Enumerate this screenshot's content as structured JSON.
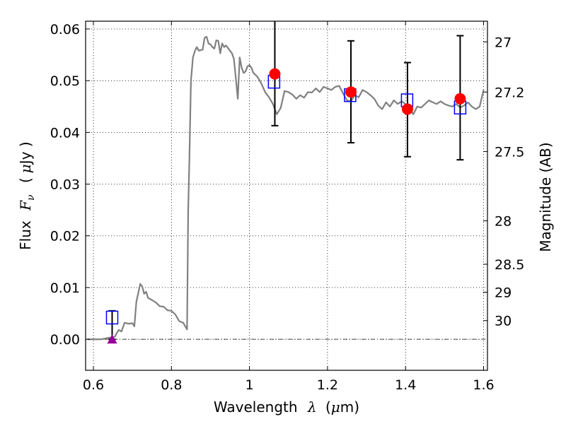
{
  "chart_data": {
    "type": "scatter",
    "xlabel": "Wavelength  λ (μm)",
    "ylabel": "Flux  F_ν  ( μJy )",
    "ylabel_parts": {
      "prefix": "Flux",
      "symbol": "F",
      "subscript": "ν",
      "unit_open": "(",
      "unit_mu": "μ",
      "unit_rest": "Jy )"
    },
    "xlabel_parts": {
      "prefix": "Wavelength",
      "symbol": "λ",
      "unit_open": "(",
      "unit_mu": "μ",
      "unit_rest": "m)"
    },
    "y2label": "Magnitude (AB)",
    "xlim": [
      0.58,
      1.61
    ],
    "ylim": [
      -0.006,
      0.0615
    ],
    "grid": true,
    "x_ticks": [
      {
        "value": 0.6,
        "label": "0.6"
      },
      {
        "value": 0.8,
        "label": "0.8"
      },
      {
        "value": 1.0,
        "label": "1"
      },
      {
        "value": 1.2,
        "label": "1.2"
      },
      {
        "value": 1.4,
        "label": "1.4"
      },
      {
        "value": 1.6,
        "label": "1.6"
      }
    ],
    "y_ticks": [
      {
        "value": 0.0,
        "label": "0.00"
      },
      {
        "value": 0.01,
        "label": "0.01"
      },
      {
        "value": 0.02,
        "label": "0.02"
      },
      {
        "value": 0.03,
        "label": "0.03"
      },
      {
        "value": 0.04,
        "label": "0.04"
      },
      {
        "value": 0.05,
        "label": "0.05"
      },
      {
        "value": 0.06,
        "label": "0.06"
      }
    ],
    "y2_ticks": [
      {
        "flux": 0.0575,
        "label": "27"
      },
      {
        "flux": 0.0478,
        "label": "27.2"
      },
      {
        "flux": 0.0363,
        "label": "27.5"
      },
      {
        "flux": 0.0229,
        "label": "28"
      },
      {
        "flux": 0.0145,
        "label": "28.5"
      },
      {
        "flux": 0.0091,
        "label": "29"
      },
      {
        "flux": 0.0036,
        "label": "30"
      }
    ],
    "model_spectrum": {
      "color": "#808080",
      "points": [
        [
          0.585,
          0.0
        ],
        [
          0.62,
          0.0
        ],
        [
          0.64,
          0.0003
        ],
        [
          0.655,
          0.0005
        ],
        [
          0.66,
          0.0012
        ],
        [
          0.665,
          0.0018
        ],
        [
          0.672,
          0.0015
        ],
        [
          0.68,
          0.0032
        ],
        [
          0.69,
          0.003
        ],
        [
          0.7,
          0.0031
        ],
        [
          0.705,
          0.0025
        ],
        [
          0.71,
          0.0072
        ],
        [
          0.72,
          0.0107
        ],
        [
          0.725,
          0.0102
        ],
        [
          0.73,
          0.0088
        ],
        [
          0.735,
          0.0092
        ],
        [
          0.74,
          0.008
        ],
        [
          0.75,
          0.0076
        ],
        [
          0.76,
          0.0071
        ],
        [
          0.77,
          0.0064
        ],
        [
          0.78,
          0.0063
        ],
        [
          0.79,
          0.0056
        ],
        [
          0.8,
          0.0055
        ],
        [
          0.81,
          0.0048
        ],
        [
          0.82,
          0.0035
        ],
        [
          0.83,
          0.0032
        ],
        [
          0.84,
          0.0019
        ],
        [
          0.843,
          0.025
        ],
        [
          0.846,
          0.035
        ],
        [
          0.85,
          0.05
        ],
        [
          0.855,
          0.0545
        ],
        [
          0.86,
          0.0557
        ],
        [
          0.865,
          0.0565
        ],
        [
          0.87,
          0.0558
        ],
        [
          0.88,
          0.056
        ],
        [
          0.885,
          0.0583
        ],
        [
          0.89,
          0.0585
        ],
        [
          0.895,
          0.0572
        ],
        [
          0.9,
          0.057
        ],
        [
          0.905,
          0.0565
        ],
        [
          0.91,
          0.0562
        ],
        [
          0.915,
          0.0578
        ],
        [
          0.92,
          0.0577
        ],
        [
          0.925,
          0.0553
        ],
        [
          0.93,
          0.0572
        ],
        [
          0.935,
          0.0565
        ],
        [
          0.94,
          0.0568
        ],
        [
          0.945,
          0.0563
        ],
        [
          0.95,
          0.0558
        ],
        [
          0.955,
          0.0553
        ],
        [
          0.96,
          0.0542
        ],
        [
          0.965,
          0.0505
        ],
        [
          0.97,
          0.0465
        ],
        [
          0.975,
          0.0545
        ],
        [
          0.98,
          0.0525
        ],
        [
          0.985,
          0.0515
        ],
        [
          0.99,
          0.0518
        ],
        [
          0.995,
          0.0528
        ],
        [
          1.0,
          0.053
        ],
        [
          1.005,
          0.0525
        ],
        [
          1.01,
          0.0515
        ],
        [
          1.02,
          0.0508
        ],
        [
          1.03,
          0.0495
        ],
        [
          1.04,
          0.0478
        ],
        [
          1.05,
          0.0468
        ],
        [
          1.06,
          0.0455
        ],
        [
          1.07,
          0.0435
        ],
        [
          1.08,
          0.0447
        ],
        [
          1.09,
          0.048
        ],
        [
          1.1,
          0.0478
        ],
        [
          1.11,
          0.0473
        ],
        [
          1.12,
          0.0465
        ],
        [
          1.13,
          0.0472
        ],
        [
          1.14,
          0.0467
        ],
        [
          1.15,
          0.0478
        ],
        [
          1.16,
          0.0477
        ],
        [
          1.17,
          0.0485
        ],
        [
          1.18,
          0.0478
        ],
        [
          1.19,
          0.0488
        ],
        [
          1.2,
          0.0485
        ],
        [
          1.21,
          0.0482
        ],
        [
          1.22,
          0.0488
        ],
        [
          1.23,
          0.049
        ],
        [
          1.24,
          0.0475
        ],
        [
          1.25,
          0.0462
        ],
        [
          1.26,
          0.046
        ],
        [
          1.27,
          0.0472
        ],
        [
          1.28,
          0.0468
        ],
        [
          1.29,
          0.0482
        ],
        [
          1.3,
          0.0478
        ],
        [
          1.31,
          0.0472
        ],
        [
          1.32,
          0.0465
        ],
        [
          1.33,
          0.0452
        ],
        [
          1.34,
          0.0445
        ],
        [
          1.35,
          0.0458
        ],
        [
          1.36,
          0.045
        ],
        [
          1.37,
          0.0462
        ],
        [
          1.38,
          0.0455
        ],
        [
          1.39,
          0.046
        ],
        [
          1.4,
          0.0455
        ],
        [
          1.41,
          0.0448
        ],
        [
          1.42,
          0.0435
        ],
        [
          1.43,
          0.045
        ],
        [
          1.44,
          0.0448
        ],
        [
          1.45,
          0.0455
        ],
        [
          1.46,
          0.0462
        ],
        [
          1.47,
          0.0458
        ],
        [
          1.48,
          0.0455
        ],
        [
          1.49,
          0.046
        ],
        [
          1.5,
          0.0455
        ],
        [
          1.51,
          0.0452
        ],
        [
          1.52,
          0.045
        ],
        [
          1.53,
          0.0455
        ],
        [
          1.54,
          0.0448
        ],
        [
          1.55,
          0.0452
        ],
        [
          1.56,
          0.0458
        ],
        [
          1.57,
          0.045
        ],
        [
          1.58,
          0.0445
        ],
        [
          1.59,
          0.045
        ],
        [
          1.6,
          0.0482
        ]
      ]
    },
    "observed": {
      "color": "#ff0000",
      "points": [
        {
          "x": 1.065,
          "y": 0.0513,
          "err_low": 0.0413,
          "err_high": 0.0617
        },
        {
          "x": 1.26,
          "y": 0.0478,
          "err_low": 0.038,
          "err_high": 0.0577
        },
        {
          "x": 1.405,
          "y": 0.0445,
          "err_low": 0.0353,
          "err_high": 0.0535
        },
        {
          "x": 1.54,
          "y": 0.0465,
          "err_low": 0.0347,
          "err_high": 0.0587
        }
      ]
    },
    "model_photometry": {
      "color": "#0000ff",
      "points": [
        {
          "x": 0.648,
          "y": 0.0042
        },
        {
          "x": 1.063,
          "y": 0.0498
        },
        {
          "x": 1.258,
          "y": 0.0472
        },
        {
          "x": 1.404,
          "y": 0.0462
        },
        {
          "x": 1.54,
          "y": 0.0448
        }
      ]
    },
    "upper_limit": {
      "color": "#990099",
      "x": 0.648,
      "y": 0.0,
      "err_high": 0.0055
    }
  }
}
